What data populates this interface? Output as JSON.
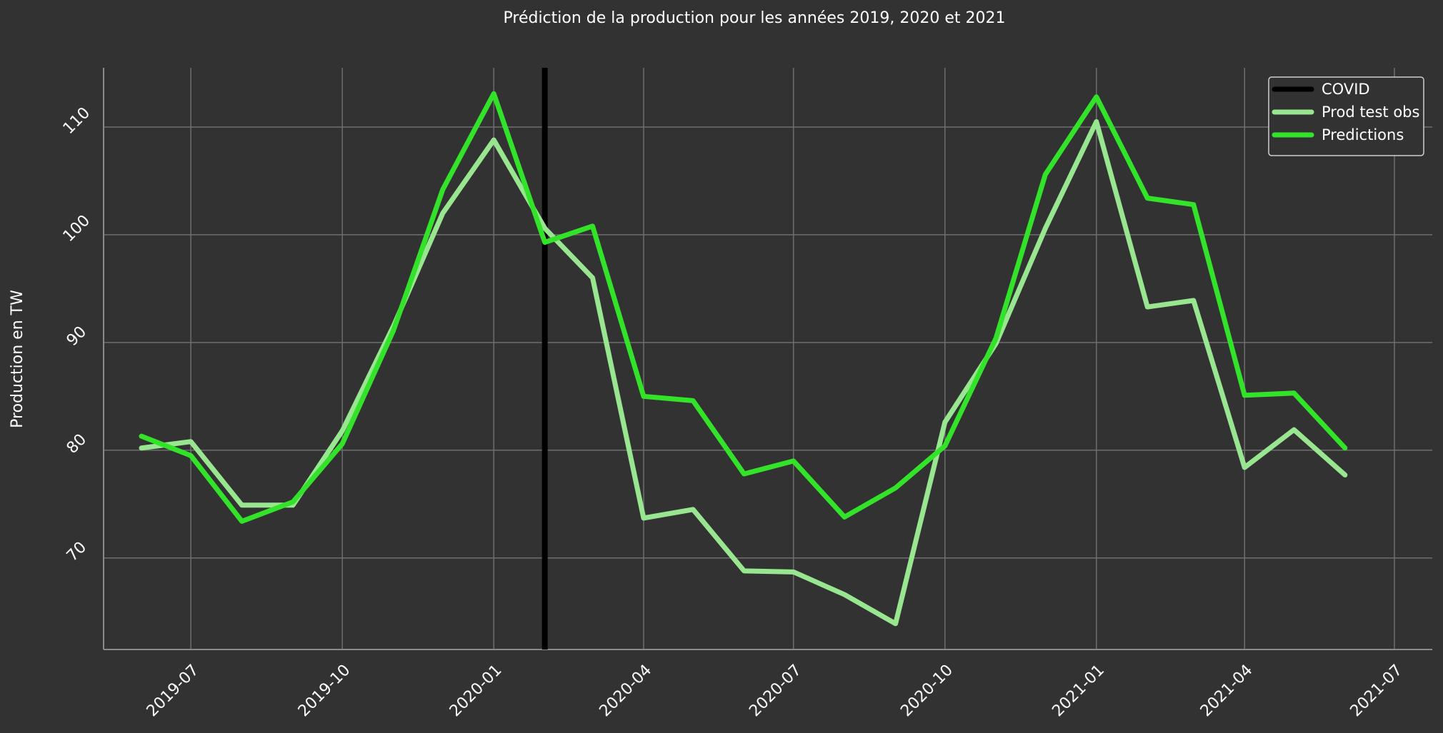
{
  "chart_data": {
    "type": "line",
    "title": "Prédiction de la production pour les années 2019, 2020 et 2021",
    "xlabel": "",
    "ylabel": "Production en TW",
    "x": [
      "2019-06",
      "2019-07",
      "2019-08",
      "2019-09",
      "2019-10",
      "2019-11",
      "2019-12",
      "2020-01",
      "2020-02",
      "2020-03",
      "2020-04",
      "2020-05",
      "2020-06",
      "2020-07",
      "2020-08",
      "2020-09",
      "2020-10",
      "2020-11",
      "2020-12",
      "2021-01",
      "2021-02",
      "2021-03",
      "2021-04",
      "2021-05",
      "2021-06"
    ],
    "x_ticks": [
      "2019-07",
      "2019-10",
      "2020-01",
      "2020-04",
      "2020-07",
      "2020-10",
      "2021-01",
      "2021-04",
      "2021-07"
    ],
    "xlim": [
      "2019-05-09",
      "2021-07-24"
    ],
    "y_ticks": [
      70,
      80,
      90,
      100,
      110
    ],
    "ylim": [
      61.5,
      115.5
    ],
    "grid": true,
    "legend_position": "top-right",
    "vline": {
      "name": "COVID",
      "x": "2020-02-01",
      "color": "#000000"
    },
    "series": [
      {
        "name": "Prod test obs",
        "color": "#98e68f",
        "values": [
          80.2,
          80.8,
          74.9,
          74.9,
          81.8,
          91.5,
          102.0,
          108.8,
          100.6,
          96.0,
          73.7,
          74.5,
          68.8,
          68.7,
          66.6,
          63.9,
          82.6,
          89.9,
          100.6,
          110.5,
          93.3,
          93.9,
          78.4,
          81.9,
          77.7
        ]
      },
      {
        "name": "Predictions",
        "color": "#33e32a",
        "values": [
          81.3,
          79.5,
          73.4,
          75.2,
          80.6,
          91.1,
          104.2,
          113.1,
          99.3,
          100.8,
          85.0,
          84.6,
          77.8,
          79.0,
          73.8,
          76.5,
          80.4,
          90.4,
          105.6,
          112.8,
          103.4,
          102.8,
          85.1,
          85.3,
          80.2
        ]
      }
    ]
  }
}
